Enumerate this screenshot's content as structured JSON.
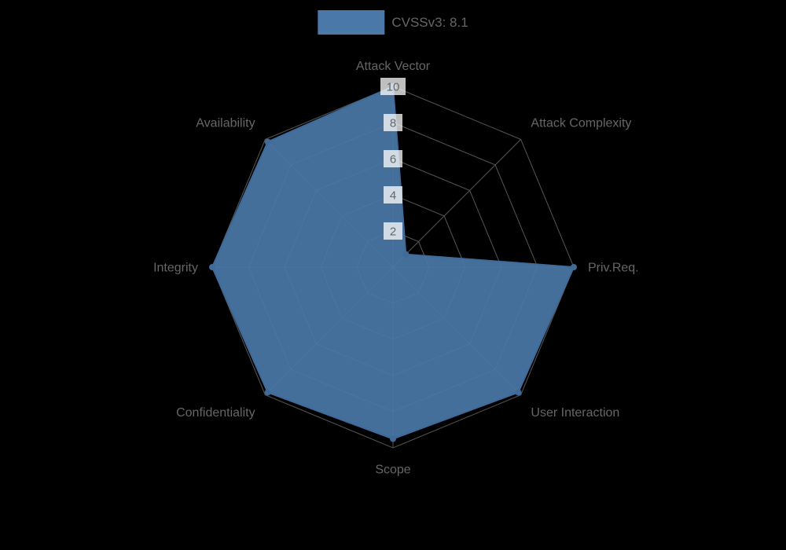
{
  "chart_data": {
    "type": "radar",
    "title": "",
    "legend": [
      {
        "label": "CVSSv3: 8.1",
        "color": "#4a78a8"
      }
    ],
    "legend_position": "top",
    "axes": [
      "Attack Vector",
      "Attack Complexity",
      "Priv.Req.",
      "User Interaction",
      "Scope",
      "Confidentiality",
      "Integrity",
      "Availability"
    ],
    "series": [
      {
        "name": "CVSSv3: 8.1",
        "values": [
          10,
          1,
          10,
          9.8,
          9.5,
          9.8,
          10,
          9.8
        ]
      }
    ],
    "ticks": [
      2,
      4,
      6,
      8,
      10
    ],
    "rmax": 10,
    "grid": true
  },
  "styles": {
    "background": "#000000",
    "axis_label_color": "#666666",
    "grid_color": "#555555",
    "tick_text_color": "#666666",
    "tick_backdrop": "rgba(255,255,255,0.75)",
    "fill_color": "#4a78a8",
    "fill_opacity": 0.92,
    "line_color": "#3f6a9a",
    "legend_text_color": "#666666"
  }
}
